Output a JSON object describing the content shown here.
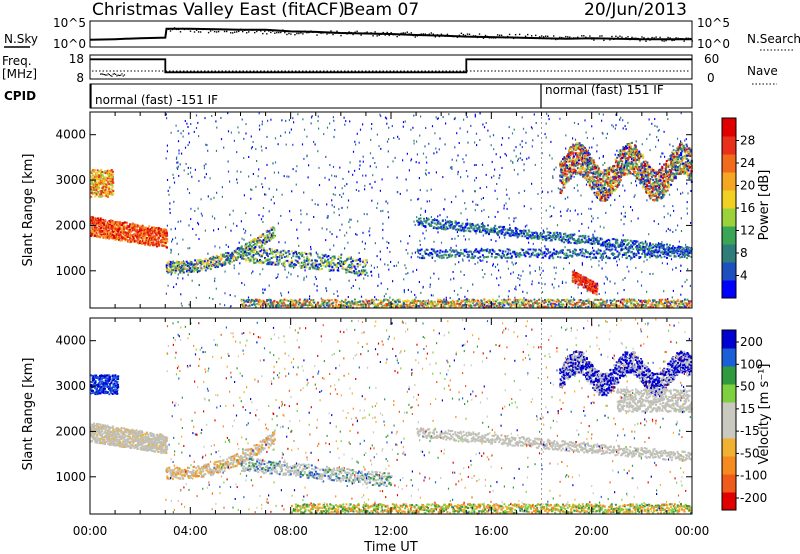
{
  "header": {
    "station": "Christmas Valley East (fitACF)",
    "beam": "Beam 07",
    "date": "20/Jun/2013"
  },
  "colors": {
    "axis": "#000000",
    "power_scale": [
      "#0000ff",
      "#1e4fbf",
      "#2e7d7a",
      "#3aa655",
      "#9bd23a",
      "#f0d020",
      "#f5a623",
      "#f26a1b",
      "#e8301a",
      "#e00000"
    ],
    "velocity_scale": [
      "#0000d0",
      "#1a5fd8",
      "#2f9a3e",
      "#7fd040",
      "#c9c9c0",
      "#c9c9c0",
      "#f0b030",
      "#f58a20",
      "#f05a1a",
      "#e00000"
    ],
    "ground_scatter": "#c0c0b8"
  },
  "chart_data": [
    {
      "type": "line",
      "name": "noise-panel",
      "labels": {
        "left": "N.Sky",
        "right": "N.Search"
      },
      "left_ticks": [
        "10^5",
        "10^0"
      ],
      "right_ticks": [
        "10^5",
        "10^0"
      ],
      "x_range_hours": [
        0,
        24
      ],
      "series": [
        {
          "x": [
            0,
            1,
            2,
            3,
            3.05,
            4,
            5,
            6,
            7,
            8,
            9,
            10,
            11,
            12,
            13,
            14,
            15,
            16,
            17,
            18,
            19,
            20,
            21,
            22,
            23,
            24
          ],
          "y": [
            1.4,
            1.5,
            1.7,
            1.8,
            3.5,
            3.5,
            3.4,
            3.3,
            3.3,
            3.0,
            2.9,
            2.7,
            2.6,
            2.5,
            2.3,
            2.2,
            2.0,
            1.9,
            1.8,
            1.7,
            1.6,
            1.7,
            1.6,
            1.5,
            1.5,
            1.5
          ]
        }
      ]
    },
    {
      "type": "line",
      "name": "frequency-panel",
      "labels": {
        "left_top": "Freq.",
        "left_bottom": "[MHz]",
        "right": "Nave"
      },
      "left_ticks": [
        "18",
        "8"
      ],
      "right_ticks": [
        "60",
        "0"
      ],
      "ylim_left": [
        8,
        18
      ],
      "x_range_hours": [
        0,
        24
      ],
      "series": [
        {
          "name": "Freq.",
          "x": [
            0,
            3,
            3,
            15,
            15,
            24
          ],
          "y": [
            16.2,
            16.2,
            10.8,
            10.8,
            16.2,
            16.2
          ]
        }
      ]
    },
    {
      "type": "table",
      "name": "cpid-panel",
      "label": "CPID",
      "segments": [
        {
          "start_hour": 0,
          "text": "normal (fast) -151 IF"
        },
        {
          "start_hour": 18,
          "text": "normal (fast) 151 IF"
        }
      ]
    },
    {
      "type": "heatmap",
      "name": "power-panel",
      "ylabel": "Slant Range [km]",
      "ylim": [
        180,
        4500
      ],
      "yticks": [
        "1000",
        "2000",
        "3000",
        "4000"
      ],
      "xlim_hours": [
        0,
        24
      ],
      "colorbar": {
        "label": "Power [dB]",
        "ticks": [
          "4",
          "8",
          "12",
          "16",
          "20",
          "24",
          "28"
        ],
        "range": [
          0,
          32
        ]
      }
    },
    {
      "type": "heatmap",
      "name": "velocity-panel",
      "ylabel": "Slant Range [km]",
      "ylim": [
        180,
        4500
      ],
      "yticks": [
        "1000",
        "2000",
        "3000",
        "4000"
      ],
      "xlim_hours": [
        0,
        24
      ],
      "xticks": [
        "00:00",
        "04:00",
        "08:00",
        "12:00",
        "16:00",
        "20:00",
        "00:00"
      ],
      "xlabel": "Time UT",
      "colorbar": {
        "label": "Velocity [m s⁻¹]",
        "ticks": [
          "200",
          "100",
          "50",
          "15",
          "-15",
          "-50",
          "-100",
          "-200"
        ]
      }
    }
  ]
}
